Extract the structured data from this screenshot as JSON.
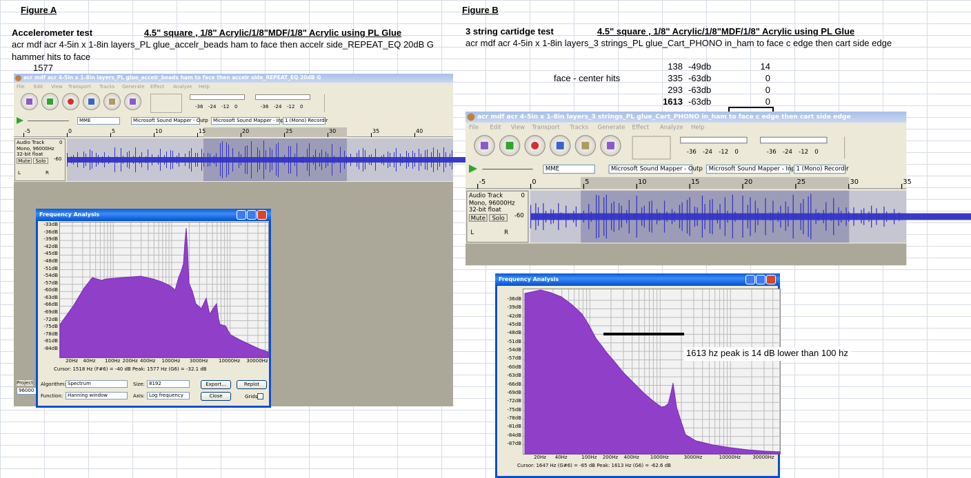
{
  "figure_a": {
    "label": "Figure A",
    "test_name": "Accelerometer test",
    "heading": "4.5\" square , 1/8\" Acrylic/1/8\"MDF/1/8\" Acrylic  using PL Glue",
    "description": [
      "acr mdf acr 4-5in x 1-8in layers_PL glue_accelr_beads ham to face then accelr side_REPEAT_EQ 20dB G",
      "hammer hits to face"
    ],
    "cell_value": "1577",
    "window": {
      "title": "acr mdf acr 4-5in x 1-8in layers_PL glue_accelr_beads ham to face then accelr side_REPEAT_EQ 20dB G",
      "menu": [
        "File",
        "Edit",
        "View",
        "Transport",
        "Tracks",
        "Generate",
        "Effect",
        "Analyze",
        "Help"
      ],
      "meter_ticks": [
        "-36",
        "-24",
        "-12",
        "0"
      ],
      "host": "MME",
      "output": "Microsoft Sound Mapper - Outp",
      "input": "Microsoft Sound Mapper - Inpu",
      "channels": "1 (Mono) Recordir",
      "timeline": [
        "-5",
        "0",
        "5",
        "10",
        "15",
        "20",
        "25",
        "30",
        "35",
        "40"
      ],
      "track": {
        "name": "Audio Track",
        "format": "Mono, 96000Hz",
        "depth": "32-bit float",
        "mute": "Mute",
        "solo": "Solo",
        "db": "-60",
        "zero": "0",
        "left": "L",
        "right": "R"
      },
      "project_label": "Project",
      "rate": "96000"
    },
    "analysis": {
      "title": "Frequency Analysis",
      "yticks": [
        "-33dB",
        "-36dB",
        "-39dB",
        "-42dB",
        "-45dB",
        "-48dB",
        "-51dB",
        "-54dB",
        "-57dB",
        "-60dB",
        "-63dB",
        "-66dB",
        "-69dB",
        "-72dB",
        "-75dB",
        "-78dB",
        "-81dB",
        "-84dB"
      ],
      "xticks": [
        "20Hz",
        "40Hz",
        "100Hz",
        "200Hz",
        "400Hz",
        "1000Hz",
        "3000Hz",
        "10000Hz",
        "30000Hz"
      ],
      "status": "Cursor: 1518 Hz (F#6) = -40 dB   Peak: 1577 Hz (G6) = -32.1 dB",
      "algorithm_label": "Algorithm:",
      "algorithm": "Spectrum",
      "size_label": "Size:",
      "size": "8192",
      "export": "Export...",
      "replot": "Replot",
      "function_label": "Function:",
      "function": "Hanning window",
      "axis_label": "Axis:",
      "axis": "Log frequency",
      "close": "Close",
      "grids": "Grids"
    }
  },
  "figure_b": {
    "label": "Figure B",
    "test_name": "3 string cartidge test",
    "heading": "4.5\" square , 1/8\" Acrylic/1/8\"MDF/1/8\" Acrylic  using PL Glue",
    "description": [
      "acr mdf acr 4-5in x 1-8in layers_3 strings_PL glue_Cart_PHONO in_ham to face c edge then cart side edge"
    ],
    "table": {
      "label": "face - center hits",
      "rows": [
        [
          "138",
          "-49db",
          "14"
        ],
        [
          "335",
          "-63db",
          "0"
        ],
        [
          "293",
          "-63db",
          "0"
        ],
        [
          "1613",
          "-63db",
          "0"
        ]
      ]
    },
    "window": {
      "title": "acr mdf acr 4-5in x 1-8in layers_3 strings_PL glue_Cart_PHONO in_ham to face c edge then cart side edge",
      "menu": [
        "File",
        "Edit",
        "View",
        "Transport",
        "Tracks",
        "Generate",
        "Effect",
        "Analyze",
        "Help"
      ],
      "meter_ticks": [
        "-36",
        "-24",
        "-12",
        "0"
      ],
      "host": "MME",
      "output": "Microsoft Sound Mapper - Outp",
      "input": "Microsoft Sound Mapper - Inpu",
      "channels": "1 (Mono) Recordir",
      "timeline": [
        "-5",
        "0",
        "5",
        "10",
        "15",
        "20",
        "25",
        "30",
        "35"
      ],
      "track": {
        "name": "Audio Track",
        "format": "Mono, 96000Hz",
        "depth": "32-bit float",
        "mute": "Mute",
        "solo": "Solo",
        "db": "-60",
        "zero": "0",
        "left": "L",
        "right": "R"
      }
    },
    "analysis": {
      "title": "Frequency Analysis",
      "yticks": [
        "-36dB",
        "-39dB",
        "-42dB",
        "-45dB",
        "-48dB",
        "-51dB",
        "-54dB",
        "-57dB",
        "-60dB",
        "-63dB",
        "-66dB",
        "-69dB",
        "-72dB",
        "-75dB",
        "-78dB",
        "-81dB",
        "-84dB",
        "-87dB"
      ],
      "xticks": [
        "20Hz",
        "40Hz",
        "100Hz",
        "200Hz",
        "400Hz",
        "1000Hz",
        "3000Hz",
        "10000Hz",
        "30000Hz"
      ],
      "status": "Cursor: 1647 Hz (G#6) = -65 dB    Peak: 1613 Hz (G6) = -62.6 dB"
    },
    "annotation": "1613 hz peak is 14 dB lower than 100 hz"
  }
}
